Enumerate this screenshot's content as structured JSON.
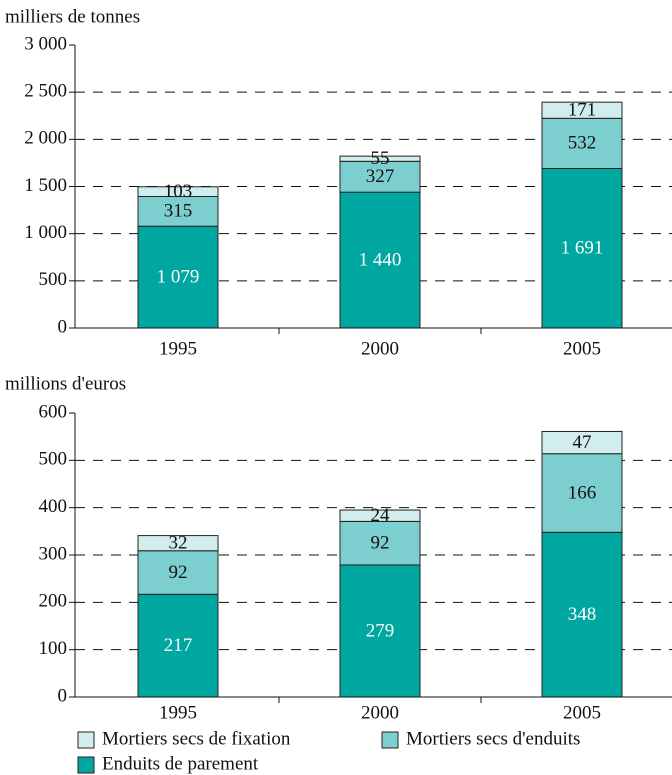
{
  "chart_data": [
    {
      "type": "stacked_bar",
      "y_label": "milliers de tonnes",
      "categories": [
        "1995",
        "2000",
        "2005"
      ],
      "series": [
        {
          "color": "#00a6a0",
          "values": [
            1079,
            1440,
            1691
          ],
          "value_labels": [
            "1 079",
            "1 440",
            "1 691"
          ]
        },
        {
          "color": "#7dcfcf",
          "values": [
            315,
            327,
            532
          ]
        },
        {
          "color": "#d2eded",
          "values": [
            103,
            55,
            171
          ]
        }
      ],
      "ylim": [
        0,
        3000
      ],
      "yticks": [
        0,
        500,
        {
          "value": 1000,
          "label": "1 000"
        },
        {
          "value": 1500,
          "label": "1 500"
        },
        {
          "value": 2000,
          "label": "2 000"
        },
        {
          "value": 2500,
          "label": "2 500"
        },
        {
          "value": 3000,
          "label": "3 000"
        }
      ],
      "grid": true
    },
    {
      "type": "stacked_bar",
      "y_label": "millions d'euros",
      "categories": [
        "1995",
        "2000",
        "2005"
      ],
      "series": [
        {
          "name": "Enduits de parement",
          "color": "#00a6a0",
          "values": [
            217,
            279,
            348
          ]
        },
        {
          "name": "Mortiers secs d'enduits",
          "color": "#7dcfcf",
          "values": [
            92,
            92,
            166
          ]
        },
        {
          "name": "Mortiers secs de fixation",
          "color": "#d2eded",
          "values": [
            32,
            24,
            47
          ]
        }
      ],
      "ylim": [
        0,
        600
      ],
      "yticks": [
        0,
        100,
        200,
        300,
        400,
        500,
        600
      ],
      "grid": true
    }
  ]
}
